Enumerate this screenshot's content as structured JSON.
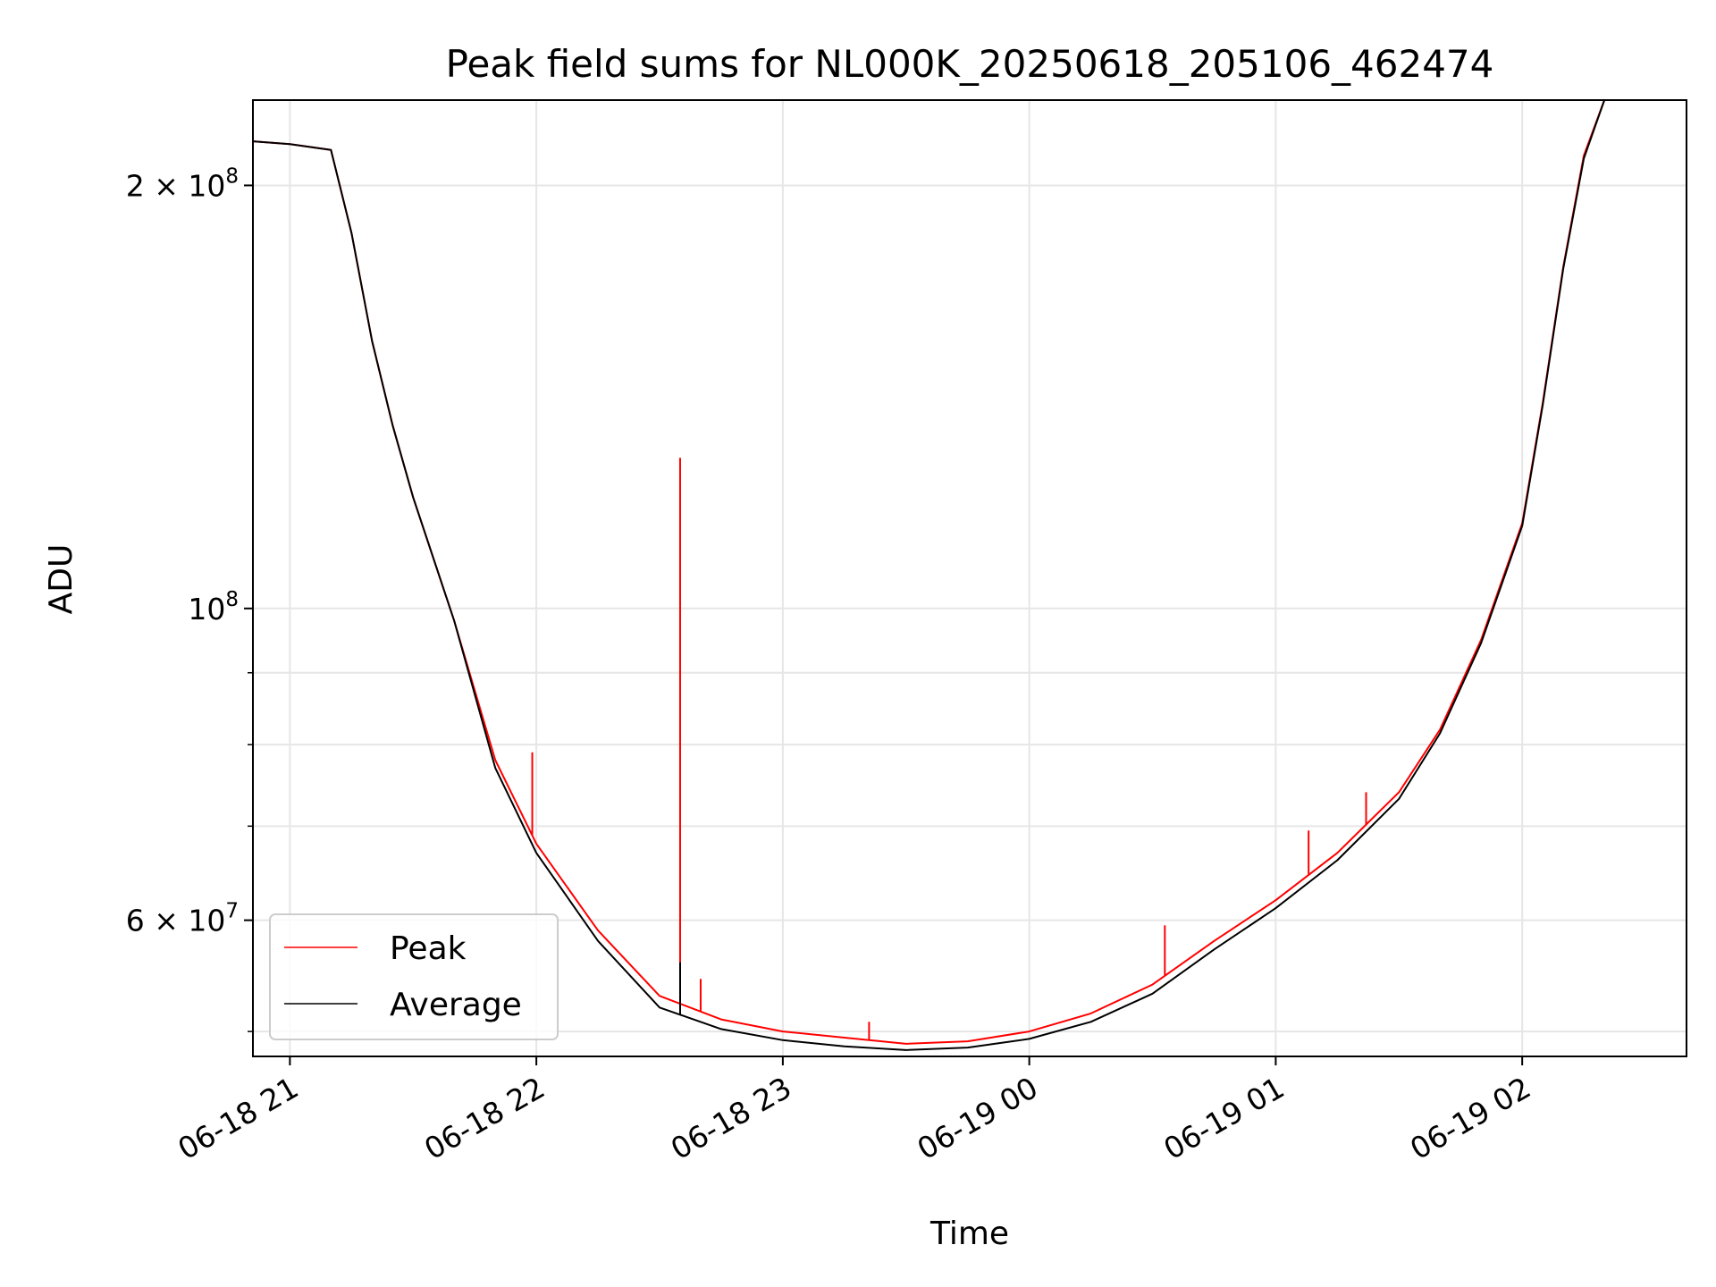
{
  "chart_data": {
    "type": "line",
    "title": "Peak field sums for NL000K_20250618_205106_462474",
    "xlabel": "Time",
    "ylabel": "ADU",
    "y_scale": "log",
    "ylim": [
      48000000,
      230000000
    ],
    "xlim": [
      "2025-06-18 20:51",
      "2025-06-19 02:40"
    ],
    "grid": true,
    "legend_position": "lower-left",
    "x_ticks": [
      "06-18 21",
      "06-18 22",
      "06-18 23",
      "06-19 00",
      "06-19 01",
      "06-19 02"
    ],
    "x_tick_values": [
      "2025-06-18 21:00",
      "2025-06-18 22:00",
      "2025-06-18 23:00",
      "2025-06-19 00:00",
      "2025-06-19 01:00",
      "2025-06-19 02:00"
    ],
    "y_major_ticks": [
      {
        "value": 200000000,
        "mantissa": "2",
        "exponent": "8"
      },
      {
        "value": 100000000,
        "mantissa": "",
        "exponent": "8"
      },
      {
        "value": 60000000,
        "mantissa": "6",
        "exponent": "7"
      }
    ],
    "y_minor_ticks": [
      50000000,
      70000000,
      80000000,
      90000000
    ],
    "x": [
      "2025-06-18 20:51",
      "2025-06-18 21:00",
      "2025-06-18 21:10",
      "2025-06-18 21:15",
      "2025-06-18 21:20",
      "2025-06-18 21:25",
      "2025-06-18 21:30",
      "2025-06-18 21:40",
      "2025-06-18 21:50",
      "2025-06-18 22:00",
      "2025-06-18 22:15",
      "2025-06-18 22:30",
      "2025-06-18 22:45",
      "2025-06-18 23:00",
      "2025-06-18 23:15",
      "2025-06-18 23:30",
      "2025-06-18 23:45",
      "2025-06-19 00:00",
      "2025-06-19 00:15",
      "2025-06-19 00:30",
      "2025-06-19 00:45",
      "2025-06-19 01:00",
      "2025-06-19 01:15",
      "2025-06-19 01:30",
      "2025-06-19 01:40",
      "2025-06-19 01:50",
      "2025-06-19 02:00",
      "2025-06-19 02:05",
      "2025-06-19 02:10",
      "2025-06-19 02:15",
      "2025-06-19 02:20"
    ],
    "series": [
      {
        "name": "Peak",
        "color": "#ff0000",
        "values": [
          215000000,
          214000000,
          212000000,
          185000000,
          155000000,
          135000000,
          120000000,
          98000000,
          78000000,
          68000000,
          59000000,
          53000000,
          51000000,
          50000000,
          49500000,
          49000000,
          49200000,
          50000000,
          51500000,
          54000000,
          58000000,
          62000000,
          67000000,
          74000000,
          82000000,
          95000000,
          115000000,
          140000000,
          175000000,
          210000000,
          230000000
        ],
        "spikes": [
          {
            "x": "2025-06-18 21:59",
            "value": 79000000
          },
          {
            "x": "2025-06-18 22:35",
            "value": 128000000
          },
          {
            "x": "2025-06-18 22:40",
            "value": 54500000
          },
          {
            "x": "2025-06-18 23:21",
            "value": 50800000
          },
          {
            "x": "2025-06-19 00:33",
            "value": 59500000
          },
          {
            "x": "2025-06-19 01:08",
            "value": 69500000
          },
          {
            "x": "2025-06-19 01:22",
            "value": 74000000
          }
        ]
      },
      {
        "name": "Average",
        "color": "#000000",
        "values": [
          215000000,
          214000000,
          212000000,
          185000000,
          155000000,
          135000000,
          120000000,
          98000000,
          77000000,
          67000000,
          58000000,
          52000000,
          50200000,
          49300000,
          48800000,
          48500000,
          48700000,
          49400000,
          50800000,
          53200000,
          57200000,
          61200000,
          66200000,
          73200000,
          81500000,
          94500000,
          114500000,
          139500000,
          174500000,
          209000000,
          230000000
        ],
        "spikes": [
          {
            "x": "2025-06-18 22:35",
            "value": 56000000
          }
        ]
      }
    ]
  }
}
